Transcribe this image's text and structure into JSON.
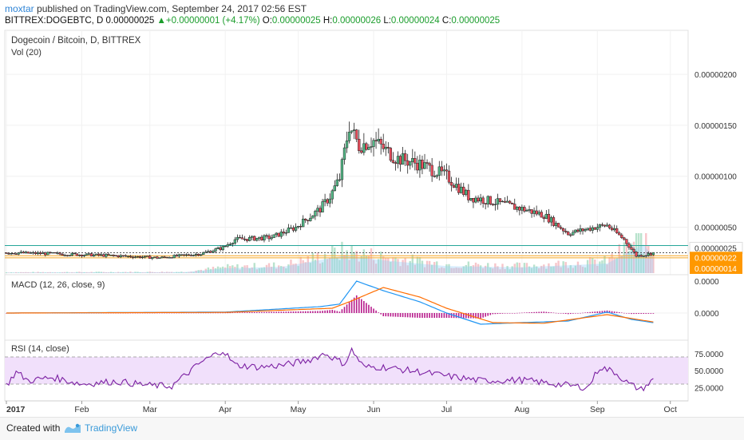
{
  "header": {
    "user": "moxtar",
    "published": "published on TradingView.com, September 24, 2017 02:56 EST",
    "symbol": "BITTREX:DOGEBTC, D",
    "last": "0.00000025",
    "change": "+0.00000001 (+4.17%)",
    "o_label": "O:",
    "o_value": "0.00000025",
    "h_label": "H:",
    "h_value": "0.00000026",
    "l_label": "L:",
    "l_value": "0.00000024",
    "c_label": "C:",
    "c_value": "0.00000025"
  },
  "legend": {
    "title": "Dogecoin / Bitcoin, D, BITTREX",
    "vol": "Vol (20)",
    "macd": "MACD (12, 26, close, 9)",
    "rsi": "RSI (14, close)"
  },
  "footer": {
    "created": "Created with",
    "brand": "TradingView"
  },
  "colors": {
    "up": "#53b987",
    "down": "#eb4d5c",
    "candle_outline": "#000000",
    "macd": "#2196f3",
    "signal": "#ff6d00",
    "hist": "#b71c8c",
    "rsi": "#7b1fa2",
    "rsi_band": "#f1e0fb",
    "price_tag": "#ff9800",
    "hline_teal": "#26a69a",
    "hline_orange": "#f5a623"
  },
  "chart_data": [
    {
      "type": "candlestick",
      "title": "Dogecoin / Bitcoin, D, BITTREX",
      "x_ticks": [
        "2017",
        "Feb",
        "Mar",
        "Apr",
        "May",
        "Jun",
        "Jul",
        "Aug",
        "Sep",
        "Oct"
      ],
      "y_ticks": [
        "0.00000200",
        "0.00000150",
        "0.00000100",
        "0.00000050"
      ],
      "ylim": [
        5e-08,
        2.4e-06
      ],
      "price_tags": [
        {
          "label": "0.00000025",
          "value": 2.5e-07
        },
        {
          "label": "0.00000022",
          "value": 2.2e-07
        },
        {
          "label": "0.00000014",
          "value": 1.4e-07
        }
      ],
      "horizontal_lines": [
        3.2e-07,
        2.5e-07,
        2.2e-07
      ],
      "keyframes": [
        [
          "2017-01-01",
          2.5e-07
        ],
        [
          "2017-01-20",
          2.4e-07
        ],
        [
          "2017-02-15",
          2.2e-07
        ],
        [
          "2017-03-05",
          2e-07
        ],
        [
          "2017-03-22",
          2.4e-07
        ],
        [
          "2017-03-31",
          3e-07
        ],
        [
          "2017-04-05",
          3.8e-07
        ],
        [
          "2017-04-20",
          4e-07
        ],
        [
          "2017-04-30",
          5e-07
        ],
        [
          "2017-05-10",
          6.8e-07
        ],
        [
          "2017-05-14",
          8e-07
        ],
        [
          "2017-05-18",
          9.8e-07
        ],
        [
          "2017-05-22",
          1.5e-06
        ],
        [
          "2017-05-26",
          1.3e-06
        ],
        [
          "2017-06-01",
          1.35e-06
        ],
        [
          "2017-06-10",
          1.18e-06
        ],
        [
          "2017-06-20",
          1.12e-06
        ],
        [
          "2017-07-01",
          1e-06
        ],
        [
          "2017-07-10",
          8e-07
        ],
        [
          "2017-07-20",
          7.5e-07
        ],
        [
          "2017-08-01",
          6.8e-07
        ],
        [
          "2017-08-10",
          6.2e-07
        ],
        [
          "2017-08-20",
          4.4e-07
        ],
        [
          "2017-08-31",
          5e-07
        ],
        [
          "2017-09-05",
          5.2e-07
        ],
        [
          "2017-09-12",
          3.8e-07
        ],
        [
          "2017-09-17",
          2.2e-07
        ],
        [
          "2017-09-21",
          2.3e-07
        ],
        [
          "2017-09-24",
          2.5e-07
        ]
      ],
      "volume_label": "Vol (20)",
      "volume_keyframes": [
        [
          "2017-01-01",
          0.02
        ],
        [
          "2017-03-15",
          0.03
        ],
        [
          "2017-04-01",
          0.15
        ],
        [
          "2017-04-25",
          0.2
        ],
        [
          "2017-05-20",
          0.55
        ],
        [
          "2017-06-05",
          0.4
        ],
        [
          "2017-07-01",
          0.22
        ],
        [
          "2017-08-01",
          0.18
        ],
        [
          "2017-09-05",
          0.3
        ],
        [
          "2017-09-15",
          0.7
        ],
        [
          "2017-09-20",
          0.9
        ],
        [
          "2017-09-24",
          0.5
        ]
      ]
    },
    {
      "type": "line",
      "title": "MACD (12, 26, close, 9)",
      "y_ticks": [
        "0.0000",
        "0.0000"
      ],
      "series": [
        {
          "name": "MACD",
          "keyframes": [
            [
              "2017-01-01",
              0
            ],
            [
              "2017-04-01",
              0.03
            ],
            [
              "2017-05-10",
              0.2
            ],
            [
              "2017-05-18",
              0.28
            ],
            [
              "2017-05-25",
              1.0
            ],
            [
              "2017-06-05",
              0.7
            ],
            [
              "2017-06-20",
              0.35
            ],
            [
              "2017-07-01",
              0.0
            ],
            [
              "2017-07-15",
              -0.35
            ],
            [
              "2017-08-01",
              -0.3
            ],
            [
              "2017-08-20",
              -0.25
            ],
            [
              "2017-09-05",
              0.03
            ],
            [
              "2017-09-15",
              -0.2
            ],
            [
              "2017-09-24",
              -0.3
            ]
          ]
        },
        {
          "name": "Signal",
          "keyframes": [
            [
              "2017-01-01",
              0
            ],
            [
              "2017-04-01",
              0.02
            ],
            [
              "2017-05-15",
              0.15
            ],
            [
              "2017-05-22",
              0.35
            ],
            [
              "2017-06-05",
              0.8
            ],
            [
              "2017-06-20",
              0.5
            ],
            [
              "2017-07-01",
              0.15
            ],
            [
              "2017-07-20",
              -0.3
            ],
            [
              "2017-08-10",
              -0.32
            ],
            [
              "2017-09-05",
              -0.05
            ],
            [
              "2017-09-24",
              -0.28
            ]
          ]
        }
      ]
    },
    {
      "type": "line",
      "title": "RSI (14, close)",
      "y_ticks": [
        "75.0000",
        "50.0000",
        "25.0000"
      ],
      "ylim": [
        10,
        90
      ],
      "bands": [
        30,
        70
      ],
      "series": [
        {
          "name": "RSI",
          "keyframes": [
            [
              "2017-01-01",
              28
            ],
            [
              "2017-01-05",
              48
            ],
            [
              "2017-01-10",
              35
            ],
            [
              "2017-01-20",
              40
            ],
            [
              "2017-02-01",
              30
            ],
            [
              "2017-02-15",
              34
            ],
            [
              "2017-03-01",
              28
            ],
            [
              "2017-03-10",
              27
            ],
            [
              "2017-03-22",
              62
            ],
            [
              "2017-03-31",
              80
            ],
            [
              "2017-04-05",
              58
            ],
            [
              "2017-04-15",
              55
            ],
            [
              "2017-04-25",
              58
            ],
            [
              "2017-05-05",
              65
            ],
            [
              "2017-05-12",
              75
            ],
            [
              "2017-05-20",
              60
            ],
            [
              "2017-05-23",
              80
            ],
            [
              "2017-05-28",
              55
            ],
            [
              "2017-06-05",
              55
            ],
            [
              "2017-06-20",
              48
            ],
            [
              "2017-07-01",
              42
            ],
            [
              "2017-07-15",
              35
            ],
            [
              "2017-08-01",
              36
            ],
            [
              "2017-08-15",
              30
            ],
            [
              "2017-08-28",
              25
            ],
            [
              "2017-09-02",
              55
            ],
            [
              "2017-09-08",
              48
            ],
            [
              "2017-09-14",
              30
            ],
            [
              "2017-09-19",
              22
            ],
            [
              "2017-09-24",
              36
            ]
          ]
        }
      ]
    }
  ]
}
